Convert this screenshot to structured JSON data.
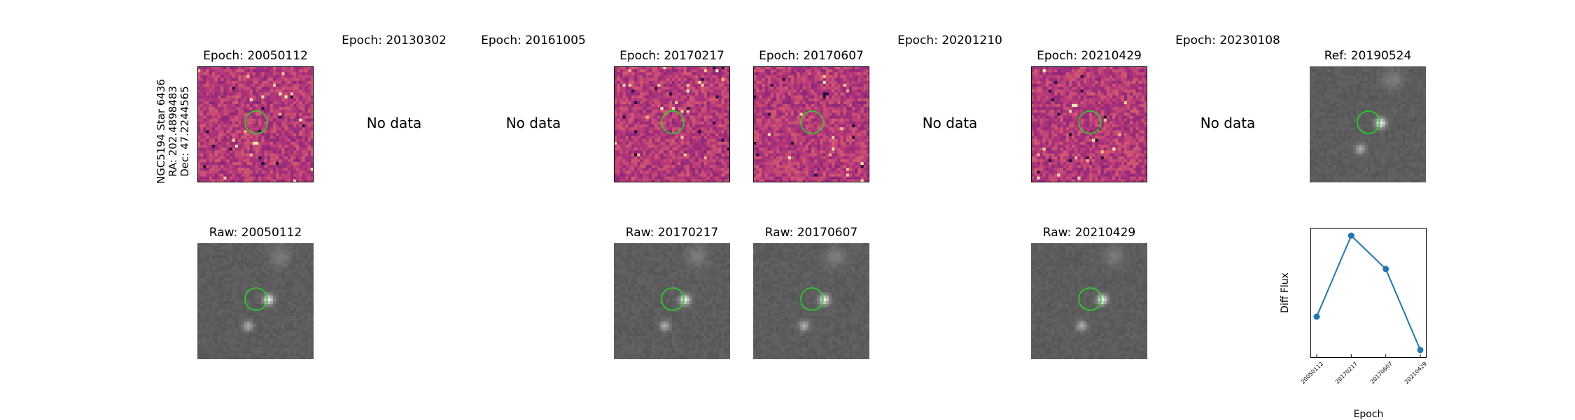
{
  "star_label": {
    "line1": "NGC5194 Star 6436",
    "line2": "RA: 202.4898483",
    "line3": "Dec: 47.2244565"
  },
  "top_row": [
    {
      "title": "Epoch: 20050112",
      "has_data": true
    },
    {
      "title": "Epoch: 20130302",
      "has_data": false,
      "message": "No data"
    },
    {
      "title": "Epoch: 20161005",
      "has_data": false,
      "message": "No data"
    },
    {
      "title": "Epoch: 20170217",
      "has_data": true
    },
    {
      "title": "Epoch: 20170607",
      "has_data": true
    },
    {
      "title": "Epoch: 20201210",
      "has_data": false,
      "message": "No data"
    },
    {
      "title": "Epoch: 20210429",
      "has_data": true
    },
    {
      "title": "Epoch: 20230108",
      "has_data": false,
      "message": "No data"
    },
    {
      "title": "Ref: 20190524",
      "has_data": true
    }
  ],
  "bottom_row": [
    {
      "title": "Raw: 20050112"
    },
    {
      "title": "Raw: 20170217"
    },
    {
      "title": "Raw: 20170607"
    },
    {
      "title": "Raw: 20210429"
    }
  ],
  "chart_data": {
    "type": "line",
    "xlabel": "Epoch",
    "ylabel": "Diff Flux",
    "categories": [
      "20050112",
      "20170217",
      "20170607",
      "20210429"
    ],
    "values": [
      0.32,
      1.0,
      0.72,
      0.04
    ],
    "ylim": [
      -0.02,
      1.06
    ],
    "marker": "circle",
    "color": "#1f77b4"
  },
  "colors": {
    "circle": "#22dd22",
    "diff_cmap": "magma",
    "raw_cmap": "gray"
  }
}
